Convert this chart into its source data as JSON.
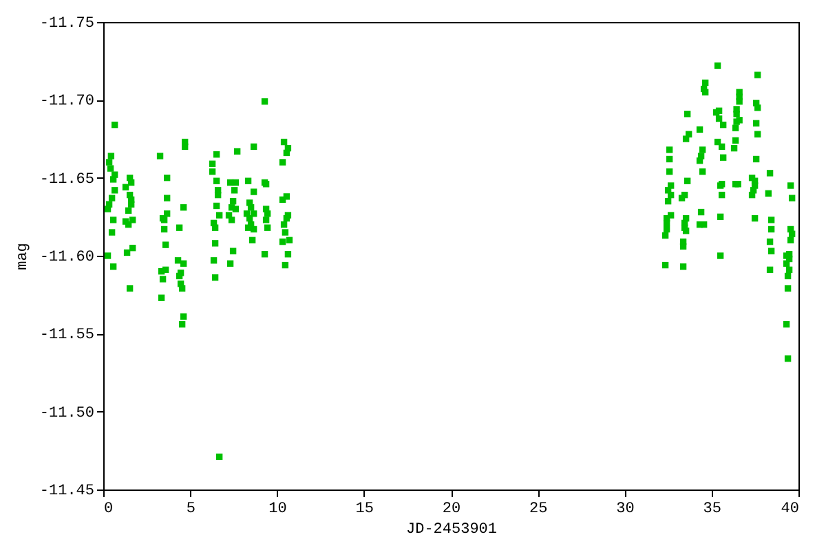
{
  "chart_data": {
    "type": "scatter",
    "xlabel": "JD-2453901",
    "ylabel": "mag",
    "marker": "square",
    "grid": false,
    "xlim": [
      0,
      40
    ],
    "xticks": [
      0,
      5,
      10,
      15,
      20,
      25,
      30,
      35,
      40
    ],
    "ylim": [
      -11.45,
      -11.75
    ],
    "yticks": [
      -11.75,
      {
        "value": -11.7,
        "label": "-11.70"
      },
      -11.65,
      {
        "value": -11.6,
        "label": "-11.60"
      },
      -11.55,
      {
        "value": -11.5,
        "label": "-11.50"
      },
      -11.45
    ],
    "series": [
      {
        "color": "#00c000",
        "x": [
          0.66,
          0.45,
          0.34,
          0.42,
          0.58,
          0.66,
          0.66,
          0.5,
          0.34,
          0.26,
          0.58,
          0.5,
          0.26,
          0.58,
          1.53,
          1.61,
          1.29,
          1.53,
          1.61,
          1.61,
          1.45,
          1.29,
          1.45,
          1.69,
          1.69,
          1.37,
          1.53,
          3.27,
          3.67,
          3.67,
          3.67,
          3.43,
          3.51,
          3.51,
          3.59,
          3.59,
          3.35,
          3.43,
          3.35,
          4.7,
          4.7,
          4.62,
          4.38,
          4.3,
          4.62,
          4.46,
          4.38,
          4.46,
          4.54,
          4.62,
          4.54,
          9.29,
          6.52,
          7.71,
          8.66,
          10.4,
          10.63,
          10.55,
          10.32,
          6.28,
          6.28,
          6.52,
          7.31,
          7.62,
          8.34,
          9.29,
          9.37,
          6.6,
          7.55,
          8.66,
          6.6,
          10.55,
          10.32,
          7.47,
          8.42,
          6.52,
          7.39,
          7.62,
          8.5,
          9.37,
          6.68,
          7.23,
          8.26,
          8.66,
          9.45,
          10.63,
          8.42,
          7.39,
          9.37,
          10.55,
          6.36,
          8.5,
          10.4,
          6.44,
          8.34,
          9.45,
          8.66,
          10.47,
          8.58,
          10.32,
          10.71,
          6.44,
          7.47,
          9.29,
          10.63,
          6.36,
          7.31,
          10.47,
          6.44,
          6.68,
          35.35,
          34.64,
          34.56,
          34.64,
          33.61,
          35.43,
          35.27,
          35.43,
          35.67,
          34.32,
          33.69,
          33.53,
          35.35,
          35.59,
          32.58,
          34.48,
          34.4,
          35.67,
          32.58,
          34.32,
          32.58,
          34.48,
          33.61,
          35.59,
          35.51,
          32.66,
          32.5,
          33.45,
          35.59,
          32.66,
          33.29,
          32.5,
          32.66,
          34.4,
          35.51,
          32.42,
          33.53,
          32.42,
          33.45,
          34.32,
          34.56,
          32.42,
          33.45,
          33.53,
          32.34,
          33.37,
          33.37,
          35.51,
          32.34,
          33.37,
          37.65,
          36.6,
          36.6,
          36.6,
          37.57,
          37.65,
          36.44,
          36.44,
          36.6,
          36.44,
          37.57,
          36.38,
          37.65,
          36.38,
          36.3,
          37.57,
          38.36,
          37.33,
          37.49,
          36.38,
          36.52,
          39.55,
          37.49,
          37.41,
          37.33,
          38.27,
          39.63,
          37.49,
          38.44,
          38.44,
          39.55,
          39.63,
          39.55,
          38.36,
          38.44,
          39.47,
          39.31,
          39.47,
          39.31,
          39.47,
          38.36,
          39.39,
          39.39,
          39.31,
          39.39
        ],
        "values": [
          -11.684,
          -11.664,
          -11.66,
          -11.656,
          -11.649,
          -11.652,
          -11.642,
          -11.637,
          -11.633,
          -11.63,
          -11.623,
          -11.615,
          -11.6,
          -11.593,
          -11.65,
          -11.647,
          -11.644,
          -11.639,
          -11.636,
          -11.633,
          -11.629,
          -11.622,
          -11.62,
          -11.623,
          -11.605,
          -11.602,
          -11.579,
          -11.664,
          -11.65,
          -11.637,
          -11.627,
          -11.624,
          -11.623,
          -11.617,
          -11.607,
          -11.591,
          -11.59,
          -11.585,
          -11.573,
          -11.673,
          -11.67,
          -11.631,
          -11.618,
          -11.597,
          -11.595,
          -11.589,
          -11.587,
          -11.582,
          -11.579,
          -11.561,
          -11.556,
          -11.699,
          -11.665,
          -11.667,
          -11.67,
          -11.673,
          -11.669,
          -11.666,
          -11.66,
          -11.659,
          -11.654,
          -11.648,
          -11.647,
          -11.647,
          -11.648,
          -11.647,
          -11.646,
          -11.642,
          -11.642,
          -11.641,
          -11.639,
          -11.638,
          -11.636,
          -11.635,
          -11.634,
          -11.632,
          -11.631,
          -11.63,
          -11.631,
          -11.63,
          -11.626,
          -11.626,
          -11.627,
          -11.627,
          -11.627,
          -11.626,
          -11.624,
          -11.623,
          -11.623,
          -11.624,
          -11.621,
          -11.62,
          -11.62,
          -11.618,
          -11.618,
          -11.618,
          -11.617,
          -11.615,
          -11.61,
          -11.609,
          -11.61,
          -11.608,
          -11.603,
          -11.601,
          -11.601,
          -11.597,
          -11.595,
          -11.594,
          -11.586,
          -11.471,
          -11.722,
          -11.711,
          -11.707,
          -11.705,
          -11.691,
          -11.693,
          -11.692,
          -11.688,
          -11.684,
          -11.681,
          -11.678,
          -11.675,
          -11.673,
          -11.67,
          -11.668,
          -11.668,
          -11.664,
          -11.663,
          -11.662,
          -11.661,
          -11.654,
          -11.654,
          -11.648,
          -11.646,
          -11.645,
          -11.645,
          -11.642,
          -11.639,
          -11.639,
          -11.639,
          -11.637,
          -11.635,
          -11.626,
          -11.628,
          -11.625,
          -11.624,
          -11.624,
          -11.621,
          -11.621,
          -11.62,
          -11.62,
          -11.617,
          -11.618,
          -11.616,
          -11.613,
          -11.609,
          -11.606,
          -11.6,
          -11.594,
          -11.593,
          -11.716,
          -11.705,
          -11.702,
          -11.699,
          -11.698,
          -11.695,
          -11.694,
          -11.691,
          -11.687,
          -11.686,
          -11.685,
          -11.682,
          -11.678,
          -11.674,
          -11.669,
          -11.662,
          -11.653,
          -11.65,
          -11.648,
          -11.646,
          -11.646,
          -11.645,
          -11.645,
          -11.642,
          -11.639,
          -11.64,
          -11.637,
          -11.624,
          -11.623,
          -11.617,
          -11.617,
          -11.614,
          -11.61,
          -11.609,
          -11.603,
          -11.601,
          -11.6,
          -11.598,
          -11.595,
          -11.591,
          -11.591,
          -11.587,
          -11.579,
          -11.556,
          -11.534
        ]
      }
    ]
  }
}
